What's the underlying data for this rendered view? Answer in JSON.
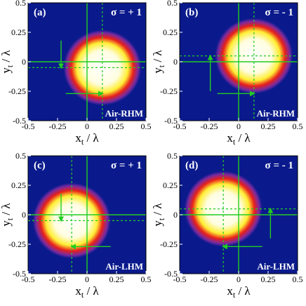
{
  "axes": {
    "x_label": "x",
    "x_label_sub": "t",
    "y_label": "y",
    "y_label_sub": "t",
    "over": " / λ",
    "tick_values": [
      -0.5,
      -0.25,
      0,
      0.25,
      0.5
    ],
    "tick_labels": [
      "-0.5",
      "-0.25",
      "0",
      "0.25",
      "0.5"
    ]
  },
  "colors": {
    "background": "#0a1a8c",
    "crosshair": "#22cc22",
    "beam_core": "#ffffff",
    "beam_edge_yellow": "#ffee33",
    "beam_edge_red": "#e8201a",
    "beam_edge_purple": "#7a2aa0"
  },
  "chart_data": [
    {
      "type": "heatmap",
      "panel": "(a)",
      "sigma": "σ = + 1",
      "medium": "Air-RHM",
      "beam_center": [
        0.13,
        -0.05
      ],
      "beam_radius": [
        0.33,
        0.32
      ],
      "xlim": [
        -0.5,
        0.5
      ],
      "ylim": [
        -0.5,
        0.5
      ],
      "shift_x": 0.13,
      "shift_y": -0.05,
      "arrows": [
        {
          "from": [
            -0.22,
            0.18
          ],
          "to": [
            -0.22,
            -0.05
          ]
        },
        {
          "from": [
            -0.18,
            -0.27
          ],
          "to": [
            0.13,
            -0.27
          ]
        }
      ]
    },
    {
      "type": "heatmap",
      "panel": "(b)",
      "sigma": "σ = - 1",
      "medium": "Air-RHM",
      "beam_center": [
        0.13,
        0.05
      ],
      "beam_radius": [
        0.33,
        0.32
      ],
      "xlim": [
        -0.5,
        0.5
      ],
      "ylim": [
        -0.5,
        0.5
      ],
      "shift_x": 0.13,
      "shift_y": 0.05,
      "arrows": [
        {
          "from": [
            -0.24,
            -0.25
          ],
          "to": [
            -0.24,
            0.05
          ]
        },
        {
          "from": [
            -0.18,
            -0.27
          ],
          "to": [
            0.13,
            -0.27
          ]
        }
      ]
    },
    {
      "type": "heatmap",
      "panel": "(c)",
      "sigma": "σ = + 1",
      "medium": "Air-LHM",
      "beam_center": [
        -0.13,
        -0.05
      ],
      "beam_radius": [
        0.33,
        0.32
      ],
      "xlim": [
        -0.5,
        0.5
      ],
      "ylim": [
        -0.5,
        0.5
      ],
      "shift_x": -0.13,
      "shift_y": -0.05,
      "arrows": [
        {
          "from": [
            -0.22,
            0.18
          ],
          "to": [
            -0.22,
            -0.05
          ]
        },
        {
          "from": [
            0.2,
            -0.27
          ],
          "to": [
            -0.13,
            -0.27
          ]
        }
      ]
    },
    {
      "type": "heatmap",
      "panel": "(d)",
      "sigma": "σ = - 1",
      "medium": "Air-LHM",
      "beam_center": [
        -0.13,
        0.05
      ],
      "beam_radius": [
        0.33,
        0.32
      ],
      "xlim": [
        -0.5,
        0.5
      ],
      "ylim": [
        -0.5,
        0.5
      ],
      "shift_x": -0.13,
      "shift_y": 0.05,
      "arrows": [
        {
          "from": [
            0.27,
            -0.2
          ],
          "to": [
            0.27,
            0.05
          ]
        },
        {
          "from": [
            0.2,
            -0.27
          ],
          "to": [
            -0.13,
            -0.27
          ]
        }
      ]
    }
  ]
}
